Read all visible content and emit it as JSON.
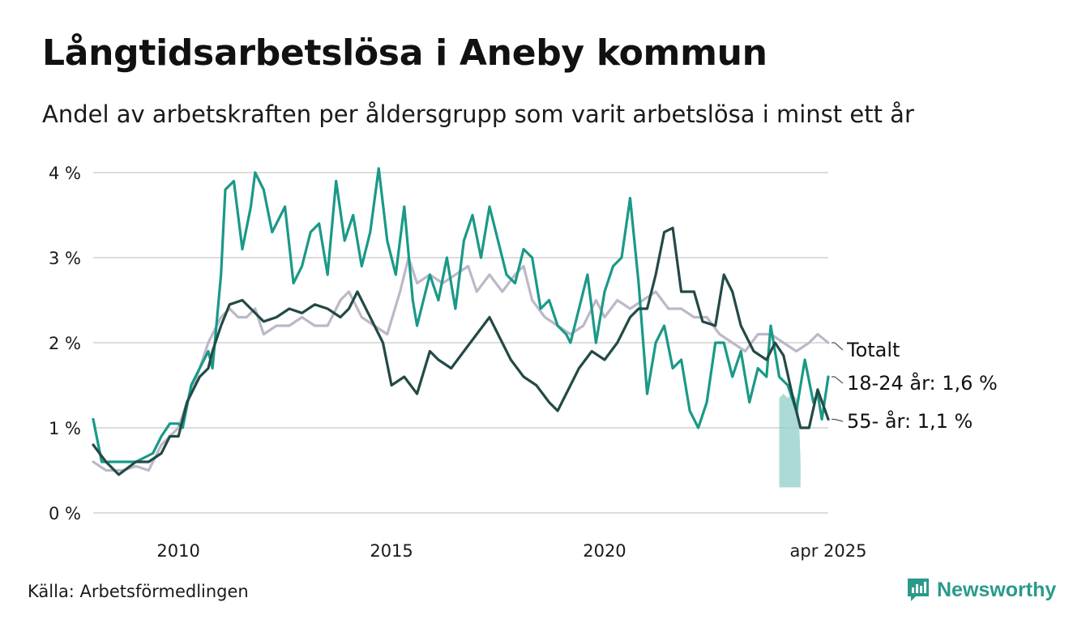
{
  "title": "Långtidsarbetslösa i Aneby kommun",
  "subtitle": "Andel av arbetskraften per åldersgrupp som varit arbetslösa i minst ett år",
  "source": "Källa: Arbetsförmedlingen",
  "brand": {
    "name": "Newsworthy",
    "icon": "bar-chart-icon"
  },
  "chart_data": {
    "type": "line",
    "ylim": [
      0,
      4.2
    ],
    "yticks": [
      0,
      1,
      2,
      3,
      4
    ],
    "ytick_labels": [
      "0 %",
      "1 %",
      "2 %",
      "3 %",
      "4 %"
    ],
    "xlim": [
      2008.0,
      2025.25
    ],
    "xticks": [
      2010,
      2015,
      2020,
      2025.25
    ],
    "xtick_labels": [
      "2010",
      "2015",
      "2020",
      "apr 2025"
    ],
    "grid": true,
    "series": [
      {
        "name": "Totalt",
        "label": "Totalt",
        "color": "#bdb8c8",
        "points": [
          [
            2008.0,
            0.6
          ],
          [
            2008.3,
            0.5
          ],
          [
            2008.7,
            0.5
          ],
          [
            2009.0,
            0.55
          ],
          [
            2009.3,
            0.5
          ],
          [
            2009.6,
            0.8
          ],
          [
            2009.8,
            0.9
          ],
          [
            2010.0,
            1.0
          ],
          [
            2010.2,
            1.3
          ],
          [
            2010.5,
            1.7
          ],
          [
            2010.7,
            2.0
          ],
          [
            2010.8,
            2.1
          ],
          [
            2011.0,
            2.3
          ],
          [
            2011.2,
            2.4
          ],
          [
            2011.4,
            2.3
          ],
          [
            2011.6,
            2.3
          ],
          [
            2011.8,
            2.4
          ],
          [
            2012.0,
            2.1
          ],
          [
            2012.3,
            2.2
          ],
          [
            2012.6,
            2.2
          ],
          [
            2012.9,
            2.3
          ],
          [
            2013.2,
            2.2
          ],
          [
            2013.5,
            2.2
          ],
          [
            2013.8,
            2.5
          ],
          [
            2014.0,
            2.6
          ],
          [
            2014.3,
            2.3
          ],
          [
            2014.6,
            2.2
          ],
          [
            2014.9,
            2.1
          ],
          [
            2015.2,
            2.6
          ],
          [
            2015.4,
            3.0
          ],
          [
            2015.6,
            2.7
          ],
          [
            2015.9,
            2.8
          ],
          [
            2016.2,
            2.7
          ],
          [
            2016.5,
            2.8
          ],
          [
            2016.8,
            2.9
          ],
          [
            2017.0,
            2.6
          ],
          [
            2017.3,
            2.8
          ],
          [
            2017.6,
            2.6
          ],
          [
            2017.9,
            2.8
          ],
          [
            2018.1,
            2.9
          ],
          [
            2018.3,
            2.5
          ],
          [
            2018.6,
            2.3
          ],
          [
            2018.9,
            2.2
          ],
          [
            2019.2,
            2.1
          ],
          [
            2019.5,
            2.2
          ],
          [
            2019.8,
            2.5
          ],
          [
            2020.0,
            2.3
          ],
          [
            2020.3,
            2.5
          ],
          [
            2020.6,
            2.4
          ],
          [
            2020.9,
            2.5
          ],
          [
            2021.2,
            2.6
          ],
          [
            2021.5,
            2.4
          ],
          [
            2021.8,
            2.4
          ],
          [
            2022.1,
            2.3
          ],
          [
            2022.4,
            2.3
          ],
          [
            2022.7,
            2.1
          ],
          [
            2023.0,
            2.0
          ],
          [
            2023.3,
            1.9
          ],
          [
            2023.6,
            2.1
          ],
          [
            2023.9,
            2.1
          ],
          [
            2024.2,
            2.0
          ],
          [
            2024.5,
            1.9
          ],
          [
            2024.8,
            2.0
          ],
          [
            2025.0,
            2.1
          ],
          [
            2025.25,
            2.0
          ]
        ]
      },
      {
        "name": "18-24 år",
        "label": "18-24 år: 1,6 %",
        "color": "#1a9988",
        "points": [
          [
            2008.0,
            1.1
          ],
          [
            2008.2,
            0.6
          ],
          [
            2008.6,
            0.6
          ],
          [
            2009.0,
            0.6
          ],
          [
            2009.4,
            0.7
          ],
          [
            2009.6,
            0.9
          ],
          [
            2009.8,
            1.05
          ],
          [
            2010.0,
            1.05
          ],
          [
            2010.1,
            1.0
          ],
          [
            2010.3,
            1.5
          ],
          [
            2010.5,
            1.7
          ],
          [
            2010.7,
            1.9
          ],
          [
            2010.8,
            1.7
          ],
          [
            2011.0,
            2.8
          ],
          [
            2011.1,
            3.8
          ],
          [
            2011.3,
            3.9
          ],
          [
            2011.5,
            3.1
          ],
          [
            2011.7,
            3.6
          ],
          [
            2011.8,
            4.0
          ],
          [
            2012.0,
            3.8
          ],
          [
            2012.2,
            3.3
          ],
          [
            2012.4,
            3.5
          ],
          [
            2012.5,
            3.6
          ],
          [
            2012.7,
            2.7
          ],
          [
            2012.9,
            2.9
          ],
          [
            2013.1,
            3.3
          ],
          [
            2013.3,
            3.4
          ],
          [
            2013.5,
            2.8
          ],
          [
            2013.7,
            3.9
          ],
          [
            2013.9,
            3.2
          ],
          [
            2014.1,
            3.5
          ],
          [
            2014.3,
            2.9
          ],
          [
            2014.5,
            3.3
          ],
          [
            2014.7,
            4.05
          ],
          [
            2014.9,
            3.2
          ],
          [
            2015.1,
            2.8
          ],
          [
            2015.3,
            3.6
          ],
          [
            2015.5,
            2.5
          ],
          [
            2015.6,
            2.2
          ],
          [
            2015.8,
            2.6
          ],
          [
            2015.9,
            2.8
          ],
          [
            2016.1,
            2.5
          ],
          [
            2016.3,
            3.0
          ],
          [
            2016.5,
            2.4
          ],
          [
            2016.7,
            3.2
          ],
          [
            2016.9,
            3.5
          ],
          [
            2017.1,
            3.0
          ],
          [
            2017.3,
            3.6
          ],
          [
            2017.5,
            3.2
          ],
          [
            2017.7,
            2.8
          ],
          [
            2017.9,
            2.7
          ],
          [
            2018.1,
            3.1
          ],
          [
            2018.3,
            3.0
          ],
          [
            2018.5,
            2.4
          ],
          [
            2018.7,
            2.5
          ],
          [
            2018.9,
            2.2
          ],
          [
            2019.1,
            2.1
          ],
          [
            2019.2,
            2.0
          ],
          [
            2019.4,
            2.4
          ],
          [
            2019.6,
            2.8
          ],
          [
            2019.8,
            2.0
          ],
          [
            2020.0,
            2.6
          ],
          [
            2020.2,
            2.9
          ],
          [
            2020.4,
            3.0
          ],
          [
            2020.6,
            3.7
          ],
          [
            2020.8,
            2.7
          ],
          [
            2021.0,
            1.4
          ],
          [
            2021.2,
            2.0
          ],
          [
            2021.4,
            2.2
          ],
          [
            2021.6,
            1.7
          ],
          [
            2021.8,
            1.8
          ],
          [
            2022.0,
            1.2
          ],
          [
            2022.2,
            1.0
          ],
          [
            2022.4,
            1.3
          ],
          [
            2022.6,
            2.0
          ],
          [
            2022.8,
            2.0
          ],
          [
            2023.0,
            1.6
          ],
          [
            2023.2,
            1.9
          ],
          [
            2023.4,
            1.3
          ],
          [
            2023.6,
            1.7
          ],
          [
            2023.8,
            1.6
          ],
          [
            2023.9,
            2.2
          ],
          [
            2024.1,
            1.6
          ],
          [
            2024.3,
            1.5
          ],
          [
            2024.5,
            1.2
          ],
          [
            2024.7,
            1.8
          ],
          [
            2024.9,
            1.3
          ],
          [
            2025.0,
            1.4
          ],
          [
            2025.1,
            1.1
          ],
          [
            2025.25,
            1.6
          ]
        ]
      },
      {
        "name": "55- år",
        "label": "55- år: 1,1 %",
        "color": "#234a46",
        "points": [
          [
            2008.0,
            0.8
          ],
          [
            2008.3,
            0.6
          ],
          [
            2008.6,
            0.45
          ],
          [
            2009.0,
            0.6
          ],
          [
            2009.3,
            0.6
          ],
          [
            2009.6,
            0.7
          ],
          [
            2009.8,
            0.9
          ],
          [
            2010.0,
            0.9
          ],
          [
            2010.2,
            1.3
          ],
          [
            2010.5,
            1.6
          ],
          [
            2010.7,
            1.7
          ],
          [
            2010.8,
            1.9
          ],
          [
            2011.0,
            2.2
          ],
          [
            2011.2,
            2.45
          ],
          [
            2011.5,
            2.5
          ],
          [
            2011.7,
            2.4
          ],
          [
            2012.0,
            2.25
          ],
          [
            2012.3,
            2.3
          ],
          [
            2012.6,
            2.4
          ],
          [
            2012.9,
            2.35
          ],
          [
            2013.2,
            2.45
          ],
          [
            2013.5,
            2.4
          ],
          [
            2013.8,
            2.3
          ],
          [
            2014.0,
            2.4
          ],
          [
            2014.2,
            2.6
          ],
          [
            2014.5,
            2.3
          ],
          [
            2014.8,
            2.0
          ],
          [
            2015.0,
            1.5
          ],
          [
            2015.3,
            1.6
          ],
          [
            2015.6,
            1.4
          ],
          [
            2015.9,
            1.9
          ],
          [
            2016.1,
            1.8
          ],
          [
            2016.4,
            1.7
          ],
          [
            2016.7,
            1.9
          ],
          [
            2017.0,
            2.1
          ],
          [
            2017.3,
            2.3
          ],
          [
            2017.5,
            2.1
          ],
          [
            2017.8,
            1.8
          ],
          [
            2018.1,
            1.6
          ],
          [
            2018.4,
            1.5
          ],
          [
            2018.7,
            1.3
          ],
          [
            2018.9,
            1.2
          ],
          [
            2019.2,
            1.5
          ],
          [
            2019.4,
            1.7
          ],
          [
            2019.7,
            1.9
          ],
          [
            2020.0,
            1.8
          ],
          [
            2020.3,
            2.0
          ],
          [
            2020.6,
            2.3
          ],
          [
            2020.8,
            2.4
          ],
          [
            2021.0,
            2.4
          ],
          [
            2021.2,
            2.8
          ],
          [
            2021.4,
            3.3
          ],
          [
            2021.6,
            3.35
          ],
          [
            2021.8,
            2.6
          ],
          [
            2022.1,
            2.6
          ],
          [
            2022.3,
            2.25
          ],
          [
            2022.6,
            2.2
          ],
          [
            2022.8,
            2.8
          ],
          [
            2023.0,
            2.6
          ],
          [
            2023.2,
            2.2
          ],
          [
            2023.5,
            1.9
          ],
          [
            2023.8,
            1.8
          ],
          [
            2024.0,
            2.0
          ],
          [
            2024.2,
            1.85
          ],
          [
            2024.4,
            1.4
          ],
          [
            2024.6,
            1.0
          ],
          [
            2024.8,
            1.0
          ],
          [
            2025.0,
            1.45
          ],
          [
            2025.25,
            1.1
          ]
        ]
      }
    ],
    "confidence_band": {
      "series": "18-24 år",
      "color": "#8fcfc6",
      "points": [
        [
          2024.1,
          0.3,
          1.35
        ],
        [
          2024.2,
          0.3,
          1.4
        ],
        [
          2024.3,
          0.3,
          1.35
        ],
        [
          2024.4,
          0.3,
          1.4
        ],
        [
          2024.5,
          0.3,
          1.35
        ],
        [
          2024.55,
          0.3,
          1.3
        ],
        [
          2024.6,
          0.3,
          0.6
        ]
      ]
    }
  }
}
